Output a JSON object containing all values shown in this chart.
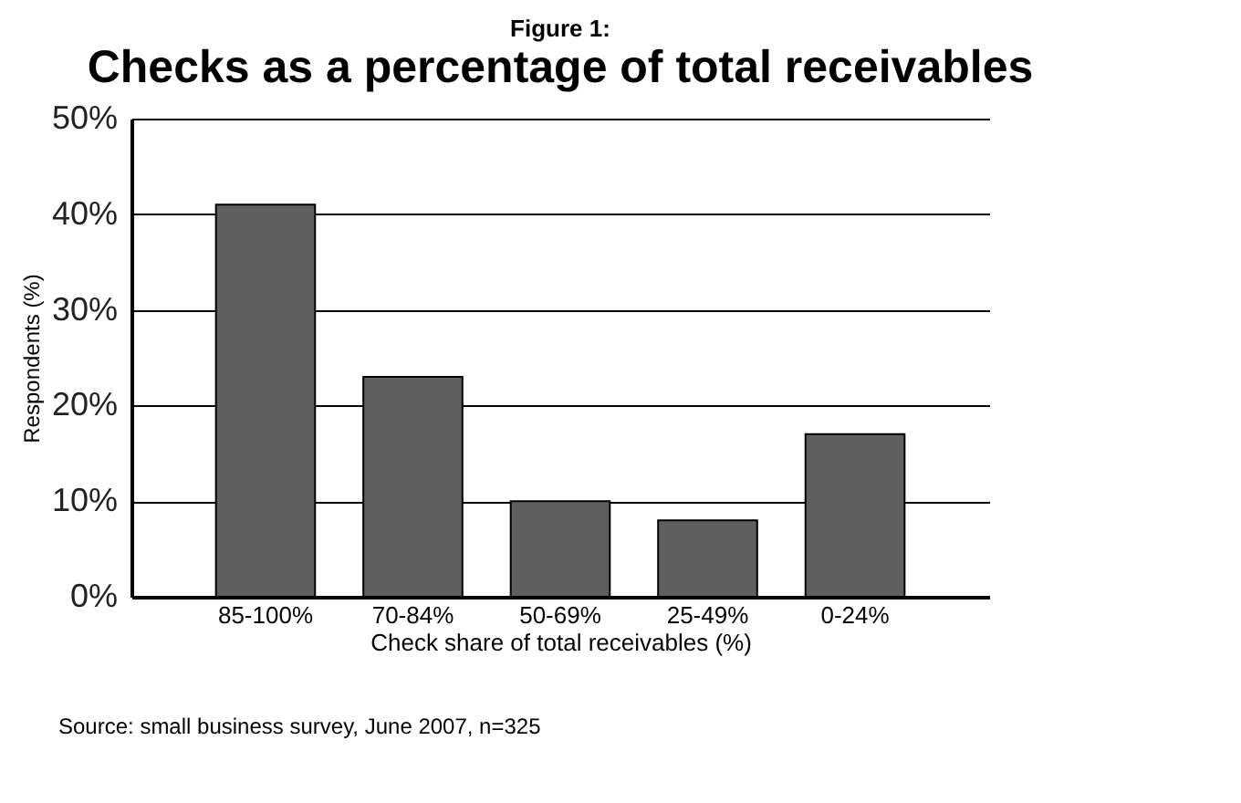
{
  "chart_data": {
    "type": "bar",
    "title": "Checks as a percentage of total receivables",
    "subtitle": "Figure 1:",
    "xlabel": "Check share of total receivables (%)",
    "ylabel": "Respondents (%)",
    "categories": [
      "85-100%",
      "70-84%",
      "50-69%",
      "25-49%",
      "0-24%"
    ],
    "values": [
      41,
      23,
      10,
      8,
      17
    ],
    "color": "#5f5f5f",
    "ylim": [
      0,
      50
    ],
    "yticks": [
      {
        "value": 0,
        "label": "0%"
      },
      {
        "value": 10,
        "label": "10%"
      },
      {
        "value": 20,
        "label": "20%"
      },
      {
        "value": 30,
        "label": "30%"
      },
      {
        "value": 40,
        "label": "40%"
      },
      {
        "value": 50,
        "label": "50%"
      }
    ],
    "grid": "y",
    "annotations": [
      "Source: small business survey, June 2007, n=325"
    ]
  }
}
